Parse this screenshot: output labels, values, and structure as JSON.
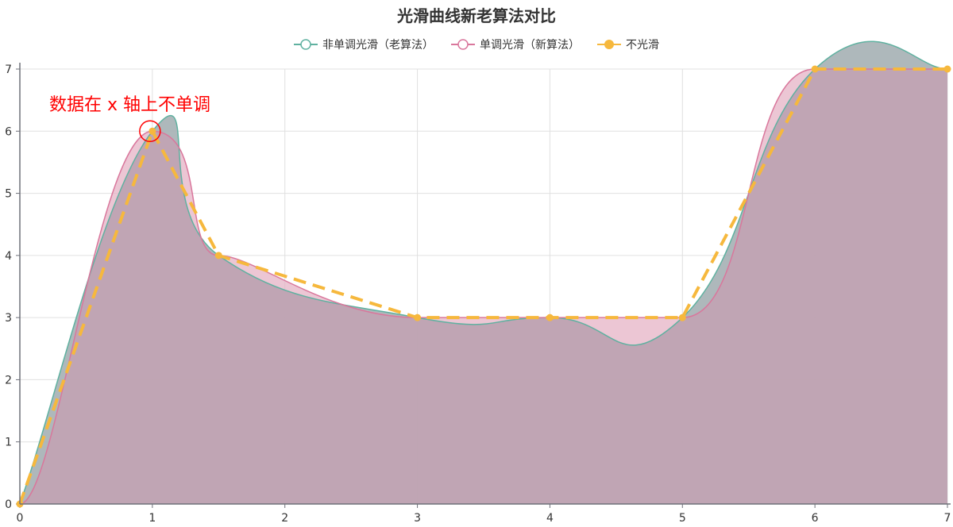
{
  "chart_data": {
    "type": "area",
    "title": "光滑曲线新老算法对比",
    "xlim": [
      0,
      7
    ],
    "ylim": [
      0,
      7
    ],
    "x_ticks": [
      "0",
      "1",
      "2",
      "3",
      "4",
      "5",
      "6",
      "7"
    ],
    "y_ticks": [
      "0",
      "1",
      "2",
      "3",
      "4",
      "5",
      "6",
      "7"
    ],
    "grid": true,
    "legend_placement": "top-center",
    "points": [
      [
        0,
        0
      ],
      [
        1,
        6
      ],
      [
        1.5,
        4
      ],
      [
        3,
        3
      ],
      [
        4,
        3
      ],
      [
        5,
        3
      ],
      [
        6,
        7
      ],
      [
        7,
        7
      ]
    ],
    "series": [
      {
        "name": "非单调光滑（老算法）",
        "style": "smooth-old",
        "color": "#5fb1a0",
        "fill": "#a9d8ce"
      },
      {
        "name": "单调光滑（新算法）",
        "style": "smooth-monotone",
        "color": "#d9779c",
        "fill": "#e5b3c6"
      },
      {
        "name": "不光滑",
        "style": "dashed",
        "color": "#f6b83d"
      }
    ],
    "annotation": "数据在 x 轴上不单调"
  }
}
